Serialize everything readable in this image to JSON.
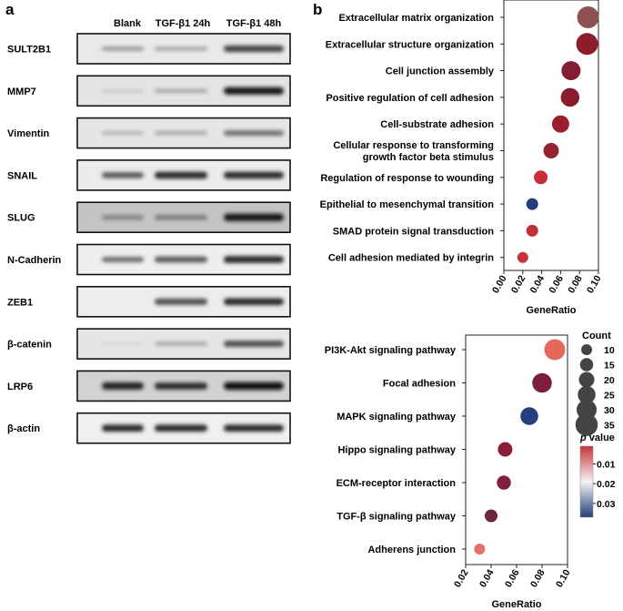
{
  "panel_a": {
    "label": "a",
    "columns": [
      "Blank",
      "TGF-β1 24h",
      "TGF-β1 48h"
    ],
    "blots": [
      {
        "name": "SULT2B1",
        "intensity": [
          0.35,
          0.3,
          0.75
        ],
        "bg": "#e9e9e9"
      },
      {
        "name": "MMP7",
        "intensity": [
          0.15,
          0.3,
          0.95
        ],
        "bg": "#e4e4e4"
      },
      {
        "name": "Vimentin",
        "intensity": [
          0.25,
          0.3,
          0.55
        ],
        "bg": "#e6e6e6"
      },
      {
        "name": "SNAIL",
        "intensity": [
          0.65,
          0.85,
          0.85
        ],
        "bg": "#ececec"
      },
      {
        "name": "SLUG",
        "intensity": [
          0.45,
          0.5,
          0.95
        ],
        "bg": "#c4c4c4"
      },
      {
        "name": "N-Cadherin",
        "intensity": [
          0.55,
          0.65,
          0.85
        ],
        "bg": "#efefef"
      },
      {
        "name": "ZEB1",
        "intensity": [
          0.0,
          0.7,
          0.85
        ],
        "bg": "#ededed"
      },
      {
        "name": "β-catenin",
        "intensity": [
          0.1,
          0.3,
          0.7
        ],
        "bg": "#e6e6e6"
      },
      {
        "name": "LRP6",
        "intensity": [
          0.9,
          0.85,
          1.0
        ],
        "bg": "#d2d2d2"
      },
      {
        "name": "β-actin",
        "intensity": [
          0.85,
          0.85,
          0.85
        ],
        "bg": "#f0f0f0"
      }
    ]
  },
  "panel_b": {
    "label": "b",
    "legend": {
      "count_title": "Count",
      "count_values": [
        10,
        15,
        20,
        25,
        30,
        35
      ],
      "p_title_italic": "p",
      "p_title_rest": " value",
      "p_ticks": [
        "0.01",
        "0.02",
        "0.03"
      ],
      "p_range": [
        0.001,
        0.037
      ],
      "colors": {
        "low_p": "#c8323a",
        "mid": "#f4f4f4",
        "high_p": "#233f7a"
      }
    }
  },
  "chart_data": [
    {
      "type": "scatter",
      "subtype": "dot-plot",
      "title": "",
      "xlabel": "GeneRatio",
      "ylabel": "",
      "xlim": [
        0.0,
        0.1
      ],
      "xticks": [
        "0.00",
        "0.02",
        "0.04",
        "0.06",
        "0.08",
        "0.10"
      ],
      "categories": [
        "Extracellular matrix organization",
        "Extracellular structure organization",
        "Cell junction assembly",
        "Positive regulation of cell adhesion",
        "Cell-substrate adhesion",
        "Cellular response to transforming growth factor beta stimulus",
        "Regulation of response to wounding",
        "Epithelial to mesenchymal transition",
        "SMAD protein signal transduction",
        "Cell adhesion mediated by integrin"
      ],
      "labels_display": [
        [
          "Extracellular matrix organization"
        ],
        [
          "Extracellular structure organization"
        ],
        [
          "Cell junction assembly"
        ],
        [
          "Positive regulation of cell adhesion"
        ],
        [
          "Cell-substrate adhesion"
        ],
        [
          "Cellular response to transforming",
          "growth factor beta stimulus"
        ],
        [
          "Regulation of response to wounding"
        ],
        [
          "Epithelial to mesenchymal transition"
        ],
        [
          "SMAD protein signal transduction"
        ],
        [
          "Cell adhesion mediated by integrin"
        ]
      ],
      "gene_ratio": [
        0.089,
        0.088,
        0.071,
        0.07,
        0.06,
        0.05,
        0.039,
        0.03,
        0.03,
        0.02
      ],
      "count": [
        34,
        34,
        28,
        27,
        24,
        20,
        16,
        12,
        12,
        10
      ],
      "color": [
        "#8d5152",
        "#8f1c2c",
        "#821f32",
        "#8c1c2d",
        "#9c1f2d",
        "#96212f",
        "#c82e37",
        "#243d7a",
        "#c03038",
        "#c8323a"
      ],
      "grid": false,
      "legend": "right"
    },
    {
      "type": "scatter",
      "subtype": "dot-plot",
      "title": "",
      "xlabel": "GeneRatio",
      "ylabel": "",
      "xlim": [
        0.02,
        0.1
      ],
      "xticks": [
        "0.02",
        "0.04",
        "0.06",
        "0.08",
        "0.10"
      ],
      "categories": [
        "PI3K-Akt signaling pathway",
        "Focal adhesion",
        "MAPK signaling pathway",
        "Hippo signaling pathway",
        "ECM-receptor interaction",
        "TGF-β signaling pathway",
        "Adherens junction"
      ],
      "labels_display": [
        [
          "PI3K-Akt signaling pathway"
        ],
        [
          "Focal adhesion"
        ],
        [
          "MAPK signaling pathway"
        ],
        [
          "Hippo signaling pathway"
        ],
        [
          "ECM-receptor interaction"
        ],
        [
          "TGF-β signaling pathway"
        ],
        [
          "Adherens junction"
        ]
      ],
      "gene_ratio": [
        0.09,
        0.08,
        0.07,
        0.051,
        0.05,
        0.04,
        0.031
      ],
      "count": [
        32,
        29,
        25,
        18,
        17,
        14,
        10
      ],
      "color": [
        "#e5685e",
        "#7c1f3a",
        "#25407c",
        "#8c1f36",
        "#7e213d",
        "#6e2540",
        "#e6706b"
      ],
      "grid": false,
      "legend": "right"
    }
  ]
}
